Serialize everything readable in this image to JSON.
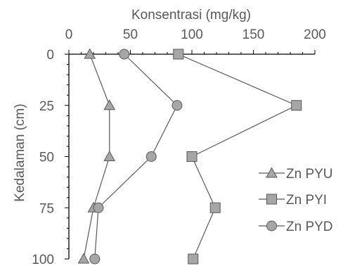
{
  "chart_data": {
    "type": "line",
    "title": "",
    "xlabel": "Konsentrasi (mg/kg)",
    "ylabel": "Kedalaman (cm)",
    "xlim": [
      0,
      200
    ],
    "ylim": [
      0,
      100
    ],
    "y_inverted": true,
    "x_axis_position": "top",
    "x_ticks": [
      0,
      50,
      100,
      150,
      200
    ],
    "y_ticks": [
      0,
      25,
      50,
      75,
      100
    ],
    "grid": false,
    "legend_position": "right",
    "series": [
      {
        "name": "Zn PYU",
        "marker": "triangle",
        "color": "#a6a6a6",
        "points": [
          {
            "x": 17,
            "y": 0
          },
          {
            "x": 33,
            "y": 25
          },
          {
            "x": 33,
            "y": 50
          },
          {
            "x": 20,
            "y": 75
          },
          {
            "x": 12,
            "y": 100
          }
        ]
      },
      {
        "name": "Zn PYI",
        "marker": "square",
        "color": "#a6a6a6",
        "points": [
          {
            "x": 89,
            "y": 0
          },
          {
            "x": 185,
            "y": 25
          },
          {
            "x": 100,
            "y": 50
          },
          {
            "x": 119,
            "y": 75
          },
          {
            "x": 101,
            "y": 100
          }
        ]
      },
      {
        "name": "Zn PYD",
        "marker": "circle",
        "color": "#a6a6a6",
        "points": [
          {
            "x": 45,
            "y": 0
          },
          {
            "x": 88,
            "y": 25
          },
          {
            "x": 67,
            "y": 50
          },
          {
            "x": 24,
            "y": 75
          },
          {
            "x": 21,
            "y": 100
          }
        ]
      }
    ]
  }
}
